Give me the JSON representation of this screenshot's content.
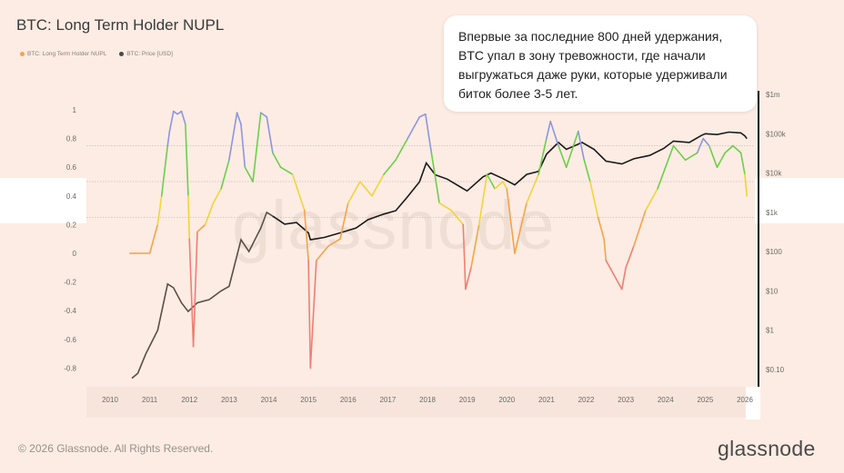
{
  "header": {
    "title": "BTC: Long Term Holder NUPL"
  },
  "legend": [
    {
      "label": "BTC: Long Term Holder NUPL",
      "color": "#f5a34a"
    },
    {
      "label": "BTC: Price [USD]",
      "color": "#4a4a4a"
    }
  ],
  "watermark": "glassnode",
  "callout": {
    "text": "Впервые за последние 800 дней удержания, BTC упал в зону тревожности, где начали выгружаться даже руки, которые удерживали биток более 3-5 лет."
  },
  "footer": {
    "copyright": "© 2026 Glassnode. All Rights Reserved.",
    "brand": "glassnode"
  },
  "colors": {
    "capitulation": "#ef7f73",
    "hope_fear": "#f5a34a",
    "optimism_anxiety": "#f2d43a",
    "belief_denial": "#6ccf4a",
    "euphoria_greed": "#8c96e0",
    "price": "#5a4e48",
    "price_recent": "#1a1a1a"
  },
  "chart_data": {
    "type": "line",
    "title": "BTC: Long Term Holder NUPL",
    "x_ticks": [
      "2010",
      "2011",
      "2012",
      "2013",
      "2014",
      "2015",
      "2016",
      "2017",
      "2018",
      "2019",
      "2020",
      "2021",
      "2022",
      "2023",
      "2024",
      "2025",
      "2026"
    ],
    "y_left": {
      "ylim": [
        -0.9,
        1.1
      ],
      "ticks": [
        "1",
        "0.8",
        "0.6",
        "0.4",
        "0.2",
        "0",
        "-0.2",
        "-0.4",
        "-0.6",
        "-0.8"
      ]
    },
    "y_right": {
      "scale": "log",
      "unit": "USD",
      "ticks": [
        "$1m",
        "$100k",
        "$10k",
        "$1k",
        "$100",
        "$10",
        "$1",
        "$0.10"
      ]
    },
    "reference_lines": [
      0.75,
      0.5,
      0.25
    ],
    "series": [
      {
        "name": "BTC: Long Term Holder NUPL",
        "x": [
          2010.5,
          2010.55,
          2010.6,
          2010.65,
          2010.7,
          2010.8,
          2010.9,
          2011.0,
          2011.2,
          2011.3,
          2011.45,
          2011.5,
          2011.6,
          2011.7,
          2011.8,
          2011.9,
          2011.97,
          2012.0,
          2012.1,
          2012.2,
          2012.4,
          2012.6,
          2012.8,
          2013.0,
          2013.2,
          2013.3,
          2013.4,
          2013.6,
          2013.8,
          2013.95,
          2014.1,
          2014.3,
          2014.6,
          2014.9,
          2015.0,
          2015.05,
          2015.2,
          2015.5,
          2015.8,
          2016.0,
          2016.3,
          2016.6,
          2016.9,
          2017.2,
          2017.5,
          2017.8,
          2017.95,
          2018.1,
          2018.3,
          2018.6,
          2018.9,
          2018.96,
          2019.1,
          2019.3,
          2019.5,
          2019.7,
          2019.9,
          2020.0,
          2020.2,
          2020.5,
          2020.8,
          2021.0,
          2021.1,
          2021.3,
          2021.5,
          2021.8,
          2021.95,
          2022.1,
          2022.3,
          2022.45,
          2022.5,
          2022.7,
          2022.9,
          2023.0,
          2023.2,
          2023.5,
          2023.8,
          2024.0,
          2024.2,
          2024.5,
          2024.8,
          2024.95,
          2025.1,
          2025.3,
          2025.5,
          2025.7,
          2025.9,
          2026.0,
          2026.05
        ],
        "values": [
          0,
          0,
          0,
          0,
          0,
          0,
          0,
          0,
          0.2,
          0.4,
          0.75,
          0.85,
          0.99,
          0.97,
          0.99,
          0.9,
          0.4,
          0.1,
          -0.65,
          0.15,
          0.2,
          0.35,
          0.45,
          0.65,
          0.98,
          0.9,
          0.6,
          0.5,
          0.98,
          0.95,
          0.7,
          0.6,
          0.55,
          0.3,
          -0.05,
          -0.8,
          -0.05,
          0.05,
          0.1,
          0.35,
          0.5,
          0.4,
          0.55,
          0.65,
          0.8,
          0.95,
          0.97,
          0.7,
          0.35,
          0.3,
          0.2,
          -0.25,
          -0.1,
          0.2,
          0.55,
          0.45,
          0.5,
          0.45,
          0.0,
          0.35,
          0.55,
          0.8,
          0.92,
          0.75,
          0.6,
          0.85,
          0.65,
          0.5,
          0.25,
          0.1,
          -0.05,
          -0.15,
          -0.25,
          -0.1,
          0.05,
          0.3,
          0.45,
          0.6,
          0.75,
          0.65,
          0.7,
          0.8,
          0.75,
          0.6,
          0.7,
          0.75,
          0.7,
          0.55,
          0.4
        ]
      },
      {
        "name": "BTC: Price [USD]",
        "x": [
          2010.55,
          2010.7,
          2010.9,
          2011.2,
          2011.45,
          2011.6,
          2011.8,
          2011.97,
          2012.2,
          2012.5,
          2012.8,
          2013.0,
          2013.3,
          2013.5,
          2013.8,
          2013.95,
          2014.1,
          2014.4,
          2014.7,
          2015.0,
          2015.05,
          2015.4,
          2015.8,
          2016.2,
          2016.5,
          2016.9,
          2017.2,
          2017.5,
          2017.8,
          2017.97,
          2018.2,
          2018.5,
          2018.9,
          2019.0,
          2019.4,
          2019.6,
          2019.9,
          2020.2,
          2020.5,
          2020.8,
          2021.0,
          2021.3,
          2021.5,
          2021.9,
          2022.2,
          2022.5,
          2022.9,
          2023.2,
          2023.6,
          2023.95,
          2024.2,
          2024.6,
          2024.9,
          2025.0,
          2025.3,
          2025.6,
          2025.9,
          2026.0,
          2026.05
        ],
        "values": [
          0.06,
          0.08,
          0.25,
          1,
          15,
          12,
          5,
          3,
          5,
          6,
          10,
          13,
          200,
          100,
          400,
          1000,
          800,
          500,
          550,
          300,
          200,
          230,
          300,
          400,
          650,
          900,
          1100,
          2500,
          6000,
          18000,
          9000,
          7000,
          4000,
          3500,
          8000,
          10000,
          7200,
          5000,
          9200,
          11000,
          30000,
          60000,
          40000,
          60000,
          40000,
          20000,
          17000,
          23000,
          28000,
          42000,
          65000,
          60000,
          90000,
          100000,
          95000,
          110000,
          105000,
          88000,
          75000
        ]
      }
    ]
  }
}
